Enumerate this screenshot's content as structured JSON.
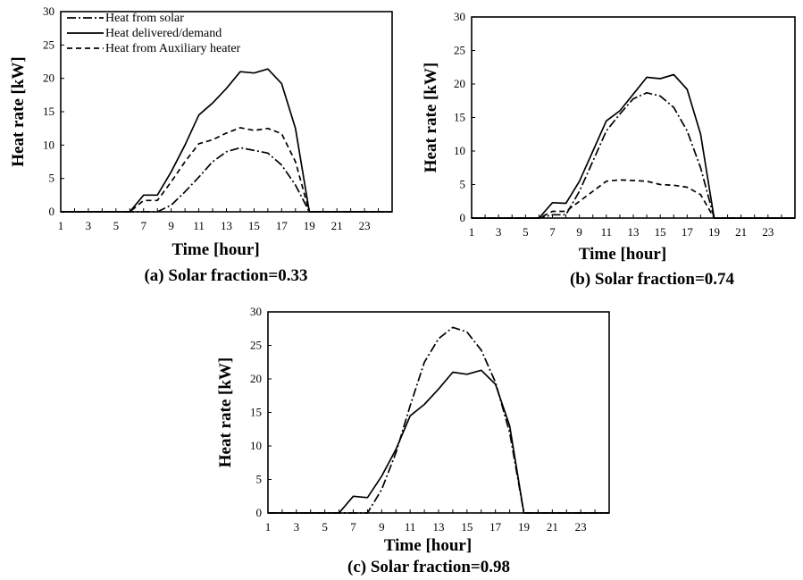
{
  "chart_data": [
    {
      "type": "line",
      "caption": "(a) Solar fraction=0.33",
      "xlabel": "Time [hour]",
      "ylabel": "Heat rate [kW]",
      "xlim": [
        1,
        25
      ],
      "ylim": [
        0,
        30
      ],
      "x_ticks": [
        "1",
        "3",
        "5",
        "7",
        "9",
        "11",
        "13",
        "15",
        "17",
        "19",
        "21",
        "23"
      ],
      "y_ticks": [
        "0",
        "5",
        "10",
        "15",
        "20",
        "25",
        "30"
      ],
      "legend": {
        "position": "top-left",
        "show": true
      },
      "series": [
        {
          "name": "Heat from solar",
          "style": "dashdot",
          "x": [
            1,
            6,
            7,
            8,
            9,
            10,
            11,
            12,
            13,
            14,
            15,
            16,
            17,
            18,
            19,
            25
          ],
          "values": [
            0,
            0,
            0,
            0,
            1,
            3,
            5.2,
            7.5,
            9,
            9.6,
            9.2,
            8.8,
            7,
            4,
            0,
            0
          ]
        },
        {
          "name": "Heat delivered/demand",
          "style": "solid",
          "x": [
            1,
            6,
            7,
            8,
            9,
            10,
            11,
            12,
            13,
            14,
            15,
            16,
            17,
            18,
            19,
            25
          ],
          "values": [
            0,
            0,
            2.5,
            2.5,
            6,
            10,
            14.5,
            16.3,
            18.5,
            21,
            20.8,
            21.4,
            19.2,
            12.5,
            0,
            0
          ]
        },
        {
          "name": "Heat from Auxiliary heater",
          "style": "dashed",
          "x": [
            1,
            6,
            7,
            8,
            9,
            10,
            11,
            12,
            13,
            14,
            15,
            16,
            17,
            18,
            19,
            25
          ],
          "values": [
            0,
            0,
            1.7,
            1.7,
            4.5,
            7.5,
            10.2,
            10.8,
            11.8,
            12.6,
            12.2,
            12.5,
            11.7,
            7.5,
            0,
            0
          ]
        }
      ]
    },
    {
      "type": "line",
      "caption": "(b) Solar fraction=0.74",
      "xlabel": "Time [hour]",
      "ylabel": "Heat rate [kW]",
      "xlim": [
        1,
        25
      ],
      "ylim": [
        0,
        30
      ],
      "x_ticks": [
        "1",
        "3",
        "5",
        "7",
        "9",
        "11",
        "13",
        "15",
        "17",
        "19",
        "21",
        "23"
      ],
      "y_ticks": [
        "0",
        "5",
        "10",
        "15",
        "20",
        "25",
        "30"
      ],
      "legend": {
        "show": false
      },
      "series": [
        {
          "style": "dashdot",
          "x": [
            1,
            6,
            7,
            8,
            9,
            10,
            11,
            12,
            13,
            14,
            15,
            16,
            17,
            18,
            19,
            25
          ],
          "values": [
            0,
            0,
            0.5,
            0.5,
            4,
            8.5,
            13,
            15.5,
            17.8,
            18.7,
            18.2,
            16.5,
            13,
            7.5,
            0,
            0
          ]
        },
        {
          "style": "solid",
          "x": [
            1,
            6,
            7,
            8,
            9,
            10,
            11,
            12,
            13,
            14,
            15,
            16,
            17,
            18,
            19,
            25
          ],
          "values": [
            0,
            0,
            2.3,
            2.2,
            5.5,
            10,
            14.5,
            16,
            18.5,
            21,
            20.8,
            21.4,
            19.2,
            12.5,
            0,
            0
          ]
        },
        {
          "style": "dashed",
          "x": [
            1,
            6,
            7,
            8,
            9,
            10,
            11,
            12,
            13,
            14,
            15,
            16,
            17,
            18,
            19,
            25
          ],
          "values": [
            0,
            0,
            1,
            1,
            2.5,
            4,
            5.5,
            5.7,
            5.6,
            5.5,
            5,
            4.9,
            4.6,
            3.5,
            0,
            0
          ]
        }
      ]
    },
    {
      "type": "line",
      "caption": "(c) Solar fraction=0.98",
      "xlabel": "Time [hour]",
      "ylabel": "Heat rate [kW]",
      "xlim": [
        1,
        25
      ],
      "ylim": [
        0,
        30
      ],
      "x_ticks": [
        "1",
        "3",
        "5",
        "7",
        "9",
        "11",
        "13",
        "15",
        "17",
        "19",
        "21",
        "23"
      ],
      "y_ticks": [
        "0",
        "5",
        "10",
        "15",
        "20",
        "25",
        "30"
      ],
      "legend": {
        "show": false
      },
      "series": [
        {
          "style": "dashdot",
          "x": [
            1,
            6,
            7,
            8,
            9,
            10,
            11,
            12,
            13,
            14,
            15,
            16,
            17,
            18,
            19,
            25
          ],
          "values": [
            0,
            0,
            0,
            0,
            3.5,
            9,
            16,
            22.5,
            26,
            27.7,
            27,
            24.3,
            19.5,
            12,
            0,
            0
          ]
        },
        {
          "style": "solid",
          "x": [
            1,
            6,
            7,
            8,
            9,
            10,
            11,
            12,
            13,
            14,
            15,
            16,
            17,
            18,
            19,
            25
          ],
          "values": [
            0,
            0,
            2.5,
            2.3,
            5.5,
            9.5,
            14.5,
            16.2,
            18.5,
            21,
            20.7,
            21.3,
            19.2,
            13,
            0,
            0
          ]
        }
      ]
    }
  ]
}
